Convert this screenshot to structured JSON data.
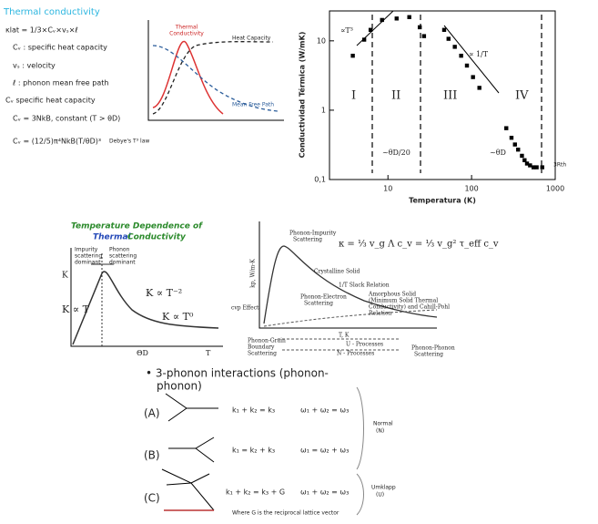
{
  "notes": {
    "title": "Thermal conductivity",
    "items": [
      "κlat = 1/3×Cᵥ×vₛ×ℓ",
      "Cᵥ : specific heat capacity",
      "vₛ : velocity",
      "ℓ : phonon mean free path",
      "Cᵥ specific heat capacity",
      "Cᵥ = 3NkB, constant (T > θD)",
      "Cᵥ = (12/5)π⁴NkB(T/θD)³",
      "Debye's T³ law"
    ]
  },
  "schematic": {
    "red_label": [
      "Thermal",
      "Conductivity"
    ],
    "heat_label": "Heat Capacity",
    "mfp_label": "Mean Free Path"
  },
  "log_plot": {
    "type": "scatter",
    "xlabel": "Temperatura (K)",
    "ylabel": "Conductividad Térmica (W/mK)",
    "log_x": true,
    "log_y": true,
    "xlim": [
      2,
      1000
    ],
    "ylim": [
      0.1,
      27
    ],
    "xticks": [
      10,
      100,
      1000
    ],
    "yticks": [
      {
        "value": 0.1,
        "label": "0,1"
      },
      1,
      10
    ],
    "color": "#000000",
    "x": [
      3.8,
      5.2,
      6.2,
      8.5,
      12.7,
      18,
      24,
      27,
      47,
      53,
      63,
      75,
      88,
      104,
      124,
      260,
      300,
      330,
      360,
      400,
      430,
      460,
      500,
      550,
      600,
      700
    ],
    "y": [
      6.1,
      10.4,
      14.4,
      20,
      21,
      22,
      15.7,
      11.7,
      14.4,
      10.7,
      8.2,
      6.1,
      4.4,
      3.0,
      2.1,
      0.55,
      0.4,
      0.32,
      0.27,
      0.22,
      0.19,
      0.17,
      0.16,
      0.15,
      0.15,
      0.15
    ],
    "regions": [
      "I",
      "II",
      "III",
      "IV"
    ],
    "annotations": [
      "∝T³",
      "∝ 1/T",
      "~θD/20",
      "~θD",
      "3Rth"
    ]
  },
  "sketch": {
    "title": [
      "Temperature Dependence of",
      "Thermal",
      "Conductivity"
    ],
    "labels": [
      "Impurity",
      "scattering",
      "dominant",
      "Phonon",
      "scattering",
      "dominant",
      "K",
      "K ∝ T",
      "K ∝ T⁻²",
      "K ∝ T⁰",
      "ΘD",
      "T"
    ]
  },
  "curve_plot": {
    "formula": "κ = ⅓ v_g Λ c_v = ⅓ v_g² τ_eff c_v",
    "labels": [
      "Phonon-Impurity",
      "Scattering",
      "Crystalline Solid",
      "1/T Slack Relation",
      "Amorphous Solid",
      "(Minimum Solid Thermal",
      "Conductivity) and Cahill-Pohl",
      "Relation",
      "Phonon-Electron",
      "Scattering",
      "kp, W/m-K",
      "cvp Effect",
      "T, K",
      "Phonon-Grain",
      "Boundary",
      "Scattering",
      "U - Processes",
      "N - Processes",
      "Phonon-Phonon",
      "Scattering"
    ]
  },
  "phonon": {
    "heading": [
      "• 3-phonon interactions (phonon-",
      "phonon)"
    ],
    "cases": [
      "(A)",
      "(B)",
      "(C)"
    ],
    "equations": [
      "k₁ + k₂ = k₃",
      "ω₁ + ω₂ = ω₃",
      "k₁ = k₂ + k₃",
      "ω₁ = ω₂ + ω₃",
      "k₁ + k₂ = k₃ + G",
      "ω₁ + ω₂ = ω₃"
    ],
    "groups": [
      "Normal",
      "(N)",
      "Umklapp",
      "(U)"
    ],
    "note": "Where G is the reciprocal lattice vector"
  }
}
